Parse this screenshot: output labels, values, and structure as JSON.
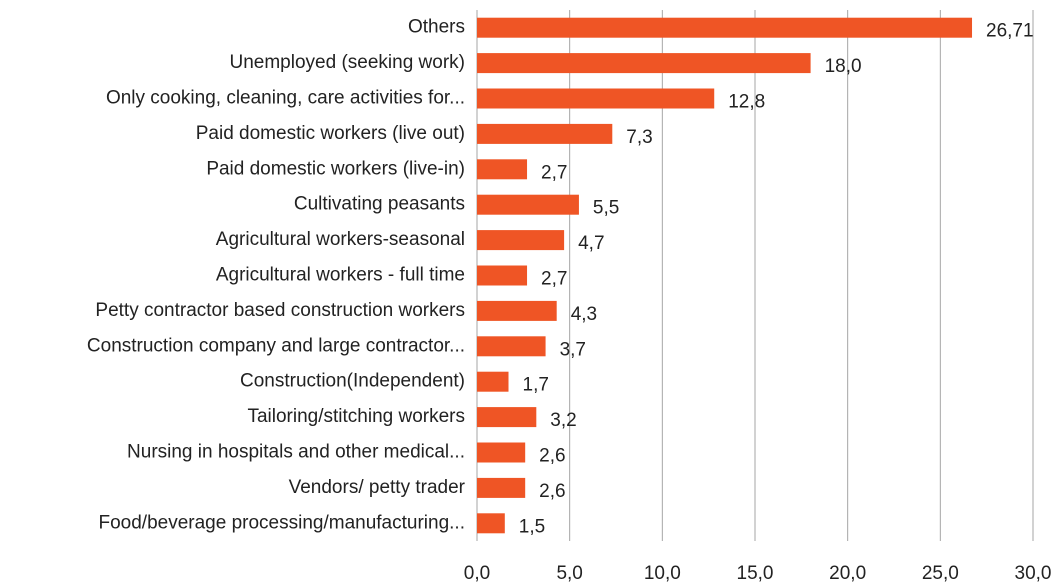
{
  "chart_data": {
    "type": "bar",
    "orientation": "horizontal",
    "categories": [
      "Others",
      "Unemployed (seeking work)",
      "Only cooking, cleaning, care activities for...",
      "Paid domestic workers (live out)",
      "Paid domestic workers (live-in)",
      "Cultivating peasants",
      "Agricultural workers-seasonal",
      "Agricultural workers - full time",
      "Petty contractor based construction workers",
      "Construction company and large contractor...",
      "Construction(Independent)",
      "Tailoring/stitching workers",
      "Nursing in hospitals and other medical...",
      "Vendors/ petty trader",
      "Food/beverage processing/manufacturing..."
    ],
    "values": [
      26.71,
      18.0,
      12.8,
      7.3,
      2.7,
      5.5,
      4.7,
      2.7,
      4.3,
      3.7,
      1.7,
      3.2,
      2.6,
      2.6,
      1.5
    ],
    "value_labels": [
      "26,71",
      "18,0",
      "12,8",
      "7,3",
      "2,7",
      "5,5",
      "4,7",
      "2,7",
      "4,3",
      "3,7",
      "1,7",
      "3,2",
      "2,6",
      "2,6",
      "1,5"
    ],
    "color": "#ef5525",
    "xlim": [
      0,
      30
    ],
    "xticks": [
      {
        "value": 0,
        "label": "0,0"
      },
      {
        "value": 5,
        "label": "5,0"
      },
      {
        "value": 10,
        "label": "10,0"
      },
      {
        "value": 15,
        "label": "15,0"
      },
      {
        "value": 20,
        "label": "20,0"
      },
      {
        "value": 25,
        "label": "25,0"
      },
      {
        "value": 30,
        "label": "30,0"
      }
    ],
    "grid": true
  }
}
